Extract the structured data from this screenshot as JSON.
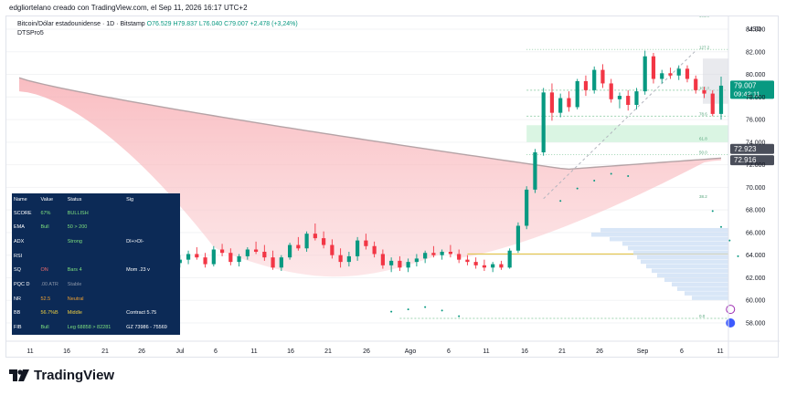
{
  "header": {
    "created_text": "edgliortelano creado con TradingView.com, el Sep 11, 2026 16:17 UTC+2"
  },
  "legend": {
    "symbol": "Bitcoin/Dólar estadounidense · 1D · Bitstamp",
    "open": "O76.529",
    "high": "H79.837",
    "low": "L76.040",
    "close": "C79.007",
    "change": "+2.478 (+3,24%)",
    "indicator": "DTSPro5"
  },
  "axis": {
    "currency": "USD",
    "y_ticks": [
      "84.000",
      "82.000",
      "80.000",
      "78.000",
      "76.000",
      "74.000",
      "72.000",
      "70.000",
      "68.000",
      "66.000",
      "64.000",
      "62.000",
      "60.000",
      "58.000"
    ],
    "x_ticks": [
      "11",
      "16",
      "21",
      "26",
      "Jul",
      "6",
      "11",
      "16",
      "21",
      "26",
      "Ago",
      "6",
      "11",
      "16",
      "21",
      "26",
      "Sep",
      "6",
      "11"
    ]
  },
  "price_labels": {
    "last_price": "79.007",
    "countdown": "09:42:11",
    "level_a": "72.923",
    "level_b": "72.916"
  },
  "fib_labels": [
    "161.8",
    "127.2",
    "100.0",
    "78.6",
    "61.8",
    "50.0",
    "38.2",
    "0.0"
  ],
  "table": {
    "headers": [
      "Name",
      "Value",
      "Status",
      "Sig"
    ],
    "rows": [
      [
        "SCORE",
        "67%",
        "BULLISH",
        ""
      ],
      [
        "EMA",
        "Bull",
        "50 > 200",
        ""
      ],
      [
        "ADX",
        "",
        "Strong",
        "DI+>DI-"
      ],
      [
        "RSI",
        "",
        "",
        ""
      ],
      [
        "SQ",
        "ON",
        "Bars 4",
        "Mom .23 v"
      ],
      [
        "PQC D",
        ".00 ATR",
        "Stable",
        ""
      ],
      [
        "NR",
        "52.5",
        "Neutral",
        ""
      ],
      [
        "BB",
        "56.7%B",
        "Middle",
        "Contract 5.75"
      ],
      [
        "FIB",
        "Bull",
        "Leg 68858 > 82281",
        "GZ 73986 - 75569"
      ]
    ]
  },
  "brand": {
    "name": "TradingView"
  },
  "colors": {
    "up": "#089981",
    "down": "#f23645",
    "cloud": "#f7b4b8",
    "table_bg": "#0c2a56"
  },
  "chart_data": {
    "type": "candlestick",
    "title": "Bitcoin/Dólar estadounidense · 1D · Bitstamp",
    "ylim": [
      57000,
      85500
    ],
    "x_labels": [
      "11",
      "16",
      "21",
      "26",
      "Jul",
      "6",
      "11",
      "16",
      "21",
      "26",
      "Ago",
      "6",
      "11",
      "16",
      "21",
      "26",
      "Sep",
      "6",
      "11"
    ],
    "candles": [
      [
        66.6,
        67.2,
        65.9,
        66.3
      ],
      [
        66.3,
        66.8,
        65.5,
        65.9
      ],
      [
        65.9,
        66.4,
        64.8,
        65.2
      ],
      [
        65.2,
        65.7,
        64.3,
        64.9
      ],
      [
        64.9,
        65.4,
        64.2,
        65.2
      ],
      [
        65.2,
        65.6,
        63.9,
        64.1
      ],
      [
        64.1,
        64.5,
        62.9,
        63.2
      ],
      [
        63.2,
        64.6,
        63.0,
        64.3
      ],
      [
        64.3,
        64.7,
        63.4,
        63.6
      ],
      [
        63.6,
        63.9,
        61.9,
        62.2
      ],
      [
        62.2,
        62.8,
        61.0,
        61.4
      ],
      [
        61.4,
        62.3,
        60.9,
        62.0
      ],
      [
        62.0,
        62.5,
        61.2,
        61.5
      ],
      [
        61.5,
        61.9,
        60.3,
        60.6
      ],
      [
        60.6,
        61.3,
        60.0,
        61.0
      ],
      [
        61.0,
        61.5,
        60.2,
        60.4
      ],
      [
        60.4,
        61.2,
        59.9,
        60.9
      ],
      [
        60.9,
        62.6,
        60.5,
        62.4
      ],
      [
        62.4,
        63.5,
        62.1,
        63.3
      ],
      [
        63.3,
        64.0,
        62.9,
        63.6
      ],
      [
        63.6,
        64.4,
        63.2,
        64.1
      ],
      [
        64.1,
        64.7,
        63.6,
        63.8
      ],
      [
        63.8,
        64.2,
        62.9,
        63.2
      ],
      [
        63.2,
        64.8,
        63.0,
        64.5
      ],
      [
        64.5,
        65.0,
        63.9,
        64.2
      ],
      [
        64.2,
        64.6,
        63.1,
        63.4
      ],
      [
        63.4,
        64.1,
        63.0,
        63.9
      ],
      [
        63.9,
        64.7,
        63.6,
        64.5
      ],
      [
        64.5,
        65.2,
        64.1,
        64.3
      ],
      [
        64.3,
        64.9,
        63.5,
        63.8
      ],
      [
        63.8,
        64.4,
        62.7,
        62.9
      ],
      [
        62.9,
        64.0,
        62.6,
        63.8
      ],
      [
        63.8,
        65.1,
        63.6,
        64.9
      ],
      [
        64.9,
        65.6,
        64.4,
        64.6
      ],
      [
        64.6,
        66.1,
        64.3,
        65.9
      ],
      [
        65.9,
        66.8,
        65.3,
        65.5
      ],
      [
        65.5,
        66.1,
        64.6,
        64.9
      ],
      [
        64.9,
        65.4,
        63.7,
        64.0
      ],
      [
        64.0,
        64.6,
        62.9,
        63.4
      ],
      [
        63.4,
        64.3,
        63.0,
        63.9
      ],
      [
        63.9,
        65.6,
        63.5,
        65.3
      ],
      [
        65.3,
        65.9,
        64.5,
        64.8
      ],
      [
        64.8,
        65.2,
        63.8,
        64.1
      ],
      [
        64.1,
        64.5,
        62.8,
        63.1
      ],
      [
        63.1,
        63.8,
        62.5,
        63.5
      ],
      [
        63.5,
        63.9,
        62.6,
        62.9
      ],
      [
        62.9,
        63.7,
        62.5,
        63.4
      ],
      [
        63.4,
        64.1,
        63.0,
        63.7
      ],
      [
        63.7,
        64.4,
        63.3,
        64.2
      ],
      [
        64.2,
        64.8,
        63.8,
        64.0
      ],
      [
        64.0,
        64.5,
        63.6,
        64.3
      ],
      [
        64.3,
        64.9,
        63.8,
        64.1
      ],
      [
        64.1,
        64.5,
        63.3,
        63.6
      ],
      [
        63.6,
        64.0,
        63.1,
        63.4
      ],
      [
        63.4,
        63.8,
        62.8,
        63.1
      ],
      [
        63.1,
        63.6,
        62.6,
        62.9
      ],
      [
        62.9,
        63.4,
        62.5,
        63.2
      ],
      [
        63.2,
        63.5,
        62.7,
        62.9
      ],
      [
        62.9,
        64.6,
        62.8,
        64.4
      ],
      [
        64.4,
        66.9,
        64.2,
        66.6
      ],
      [
        66.6,
        70.1,
        66.3,
        69.8
      ],
      [
        69.8,
        73.4,
        69.5,
        73.1
      ],
      [
        73.1,
        78.8,
        72.8,
        78.4
      ],
      [
        78.4,
        79.2,
        75.9,
        76.6
      ],
      [
        76.6,
        78.3,
        76.2,
        77.9
      ],
      [
        77.9,
        78.5,
        76.7,
        77.1
      ],
      [
        77.1,
        79.6,
        76.9,
        79.4
      ],
      [
        79.4,
        79.9,
        78.1,
        78.6
      ],
      [
        78.6,
        80.7,
        78.3,
        80.4
      ],
      [
        80.4,
        80.9,
        78.8,
        79.2
      ],
      [
        79.2,
        79.6,
        77.5,
        77.8
      ],
      [
        77.8,
        78.4,
        77.0,
        78.1
      ],
      [
        78.1,
        78.6,
        76.8,
        77.3
      ],
      [
        77.3,
        78.8,
        76.9,
        78.5
      ],
      [
        78.5,
        82.1,
        78.2,
        81.6
      ],
      [
        81.6,
        81.9,
        79.2,
        79.6
      ],
      [
        79.6,
        80.4,
        79.2,
        80.1
      ],
      [
        80.1,
        80.6,
        79.6,
        79.9
      ],
      [
        79.9,
        80.8,
        79.5,
        80.5
      ],
      [
        80.5,
        80.8,
        79.3,
        79.6
      ],
      [
        79.6,
        79.9,
        78.3,
        78.6
      ],
      [
        78.6,
        78.9,
        77.9,
        78.3
      ],
      [
        78.3,
        78.6,
        76.3,
        76.5
      ],
      [
        76.5,
        79.8,
        76.0,
        79.0
      ]
    ]
  }
}
